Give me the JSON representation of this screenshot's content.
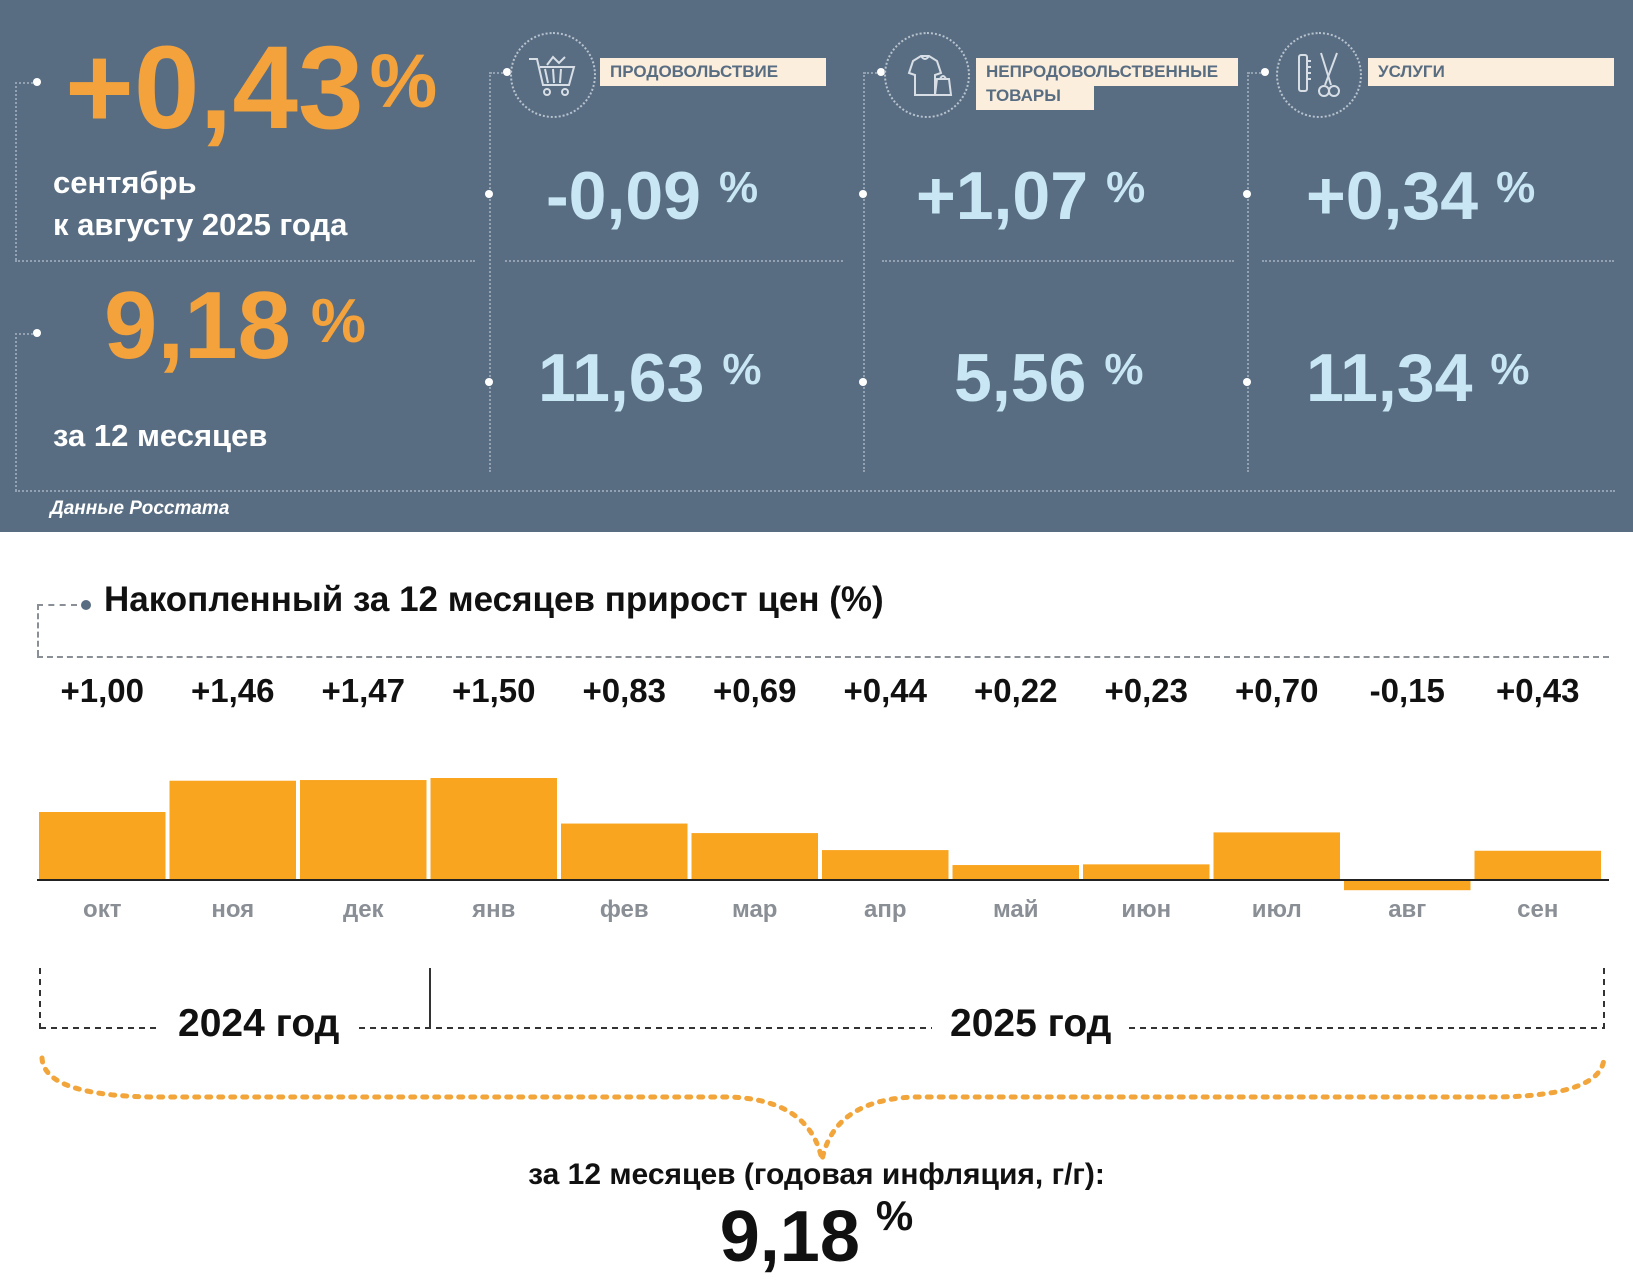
{
  "summary": {
    "monthly_value": "+0,43",
    "monthly_pct": "%",
    "monthly_caption_line1": "сентябрь",
    "monthly_caption_line2": "к августу 2025 года",
    "annual_value": "9,18",
    "annual_pct": "%",
    "annual_caption": "за 12 месяцев"
  },
  "categories": [
    {
      "icon": "shopping-cart-icon",
      "label": "ПРОДОВОЛЬСТВИЕ",
      "monthly": "-0,09",
      "annual": "11,63",
      "pct": "%"
    },
    {
      "icon": "clothing-icon",
      "label_line1": "НЕПРОДОВОЛЬСТВЕННЫЕ",
      "label_line2": "ТОВАРЫ",
      "monthly": "+1,07",
      "annual": "5,56",
      "pct": "%"
    },
    {
      "icon": "scissors-comb-icon",
      "label": "УСЛУГИ",
      "monthly": "+0,34",
      "annual": "11,34",
      "pct": "%"
    }
  ],
  "source": "Данные Росстата",
  "colors": {
    "panel": "#596d82",
    "accent": "#f4a23c",
    "value_light": "#c8e6f3",
    "bar": "#faa520"
  },
  "chart_data": {
    "type": "bar",
    "title": "Накопленный за 12 месяцев прирост цен (%)",
    "categories": [
      "окт",
      "ноя",
      "дек",
      "янв",
      "фев",
      "мар",
      "апр",
      "май",
      "июн",
      "июл",
      "авг",
      "сен"
    ],
    "values": [
      1.0,
      1.46,
      1.47,
      1.5,
      0.83,
      0.69,
      0.44,
      0.22,
      0.23,
      0.7,
      -0.15,
      0.43
    ],
    "value_labels": [
      "+1,00",
      "+1,46",
      "+1,47",
      "+1,50",
      "+0,83",
      "+0,69",
      "+0,44",
      "+0,22",
      "+0,23",
      "+0,70",
      "-0,15",
      "+0,43"
    ],
    "ylim": [
      -0.15,
      1.5
    ],
    "grid": false
  },
  "years": {
    "y2024": "2024 год",
    "y2025": "2025 год"
  },
  "footer": {
    "caption": "за 12 месяцев (годовая инфляция, г/г):",
    "total": "9,18",
    "pct": "%"
  }
}
